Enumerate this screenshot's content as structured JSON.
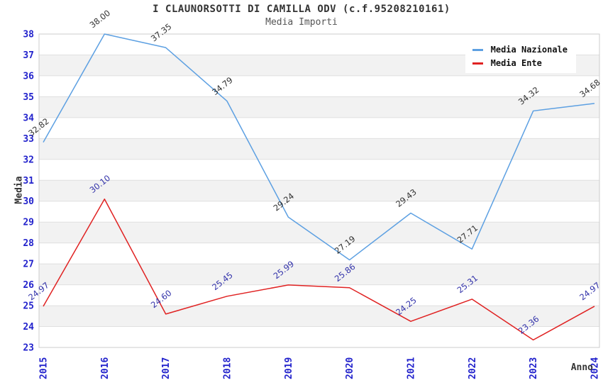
{
  "title": "I CLAUNORSOTTI DI CAMILLA ODV (c.f.95208210161)",
  "subtitle": "Media Importi",
  "axes": {
    "y_label": "Media",
    "x_label": "Anno"
  },
  "legend": {
    "position": "top-right",
    "items": [
      "Media Nazionale",
      "Media Ente"
    ]
  },
  "colors": {
    "axis_tick_label": "#2222cc",
    "band_fill": "#f2f2f2",
    "gridline": "#e0e0e0",
    "plot_border": "#cccccc",
    "title_text": "#333333",
    "subtitle_text": "#555555"
  },
  "chart_data": {
    "type": "line",
    "title": "I CLAUNORSOTTI DI CAMILLA ODV (c.f.95208210161)",
    "subtitle": "Media Importi",
    "xlabel": "Anno",
    "ylabel": "Media",
    "categories": [
      "2015",
      "2016",
      "2017",
      "2018",
      "2019",
      "2020",
      "2021",
      "2022",
      "2023",
      "2024"
    ],
    "series": [
      {
        "name": "Media Nazionale",
        "color": "#5da0e2",
        "label_color": "#333333",
        "values": [
          32.82,
          38.0,
          37.35,
          34.79,
          29.24,
          27.19,
          29.43,
          27.71,
          34.32,
          34.68
        ]
      },
      {
        "name": "Media Ente",
        "color": "#e02222",
        "label_color": "#3333aa",
        "values": [
          24.97,
          30.1,
          24.6,
          25.45,
          25.99,
          25.86,
          24.25,
          25.31,
          23.36,
          24.97
        ]
      }
    ],
    "ylim": [
      23,
      38
    ],
    "y_tick_step": 1,
    "grid": "horizontal-gridlines-with-alternating-bands",
    "point_labels": "two-decimals-rotated",
    "legend_position": "top-right"
  }
}
